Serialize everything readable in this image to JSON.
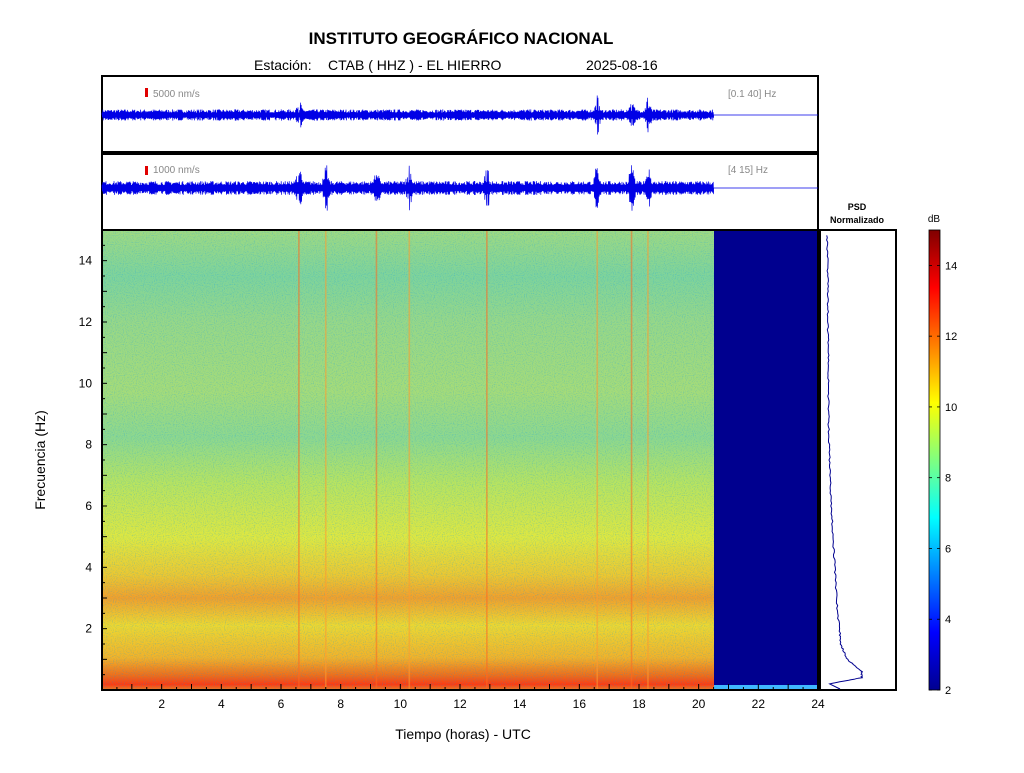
{
  "header": {
    "title": "INSTITUTO GEOGRÁFICO NACIONAL",
    "station_label": "Estación:",
    "station": "CTAB ( HHZ ) - EL HIERRO",
    "date": "2025-08-16"
  },
  "chart_data": {
    "type": "heatmap",
    "xlabel": "Tiempo (horas) - UTC",
    "ylabel": "Frecuencia  (Hz)",
    "xlim": [
      0,
      24
    ],
    "ylim": [
      0,
      15
    ],
    "x_ticks": [
      "2",
      "4",
      "6",
      "8",
      "10",
      "12",
      "14",
      "16",
      "18",
      "20",
      "22",
      "24"
    ],
    "y_ticks": [
      "2",
      "4",
      "6",
      "8",
      "10",
      "12",
      "14"
    ],
    "data_end_hour": 20.5,
    "traces": [
      {
        "scale": "5000 nm/s",
        "filter": "[0.1 40] Hz",
        "events_h": [
          6.6,
          16.6,
          17.75,
          18.3
        ]
      },
      {
        "scale": "1000 nm/s",
        "filter": "[4 15] Hz",
        "events_h": [
          6.6,
          7.5,
          9.2,
          10.3,
          12.9,
          16.6,
          17.75,
          18.3
        ]
      }
    ],
    "psd": {
      "title_line1": "PSD",
      "title_line2": "Normalizado",
      "frequency_hz": [
        0.2,
        0.4,
        0.6,
        1.0,
        1.5,
        2.0,
        3.0,
        4.0,
        5.0,
        6.0,
        7.0,
        8.0,
        9.0,
        10.0,
        11.0,
        12.0,
        13.0,
        14.0,
        14.9
      ],
      "relative_level": [
        0.1,
        0.55,
        0.55,
        0.35,
        0.26,
        0.24,
        0.2,
        0.18,
        0.15,
        0.13,
        0.11,
        0.1,
        0.09,
        0.09,
        0.09,
        0.08,
        0.08,
        0.08,
        0.07
      ]
    },
    "colorbar": {
      "label": "dB",
      "range": [
        2,
        15
      ],
      "ticks": [
        "2",
        "4",
        "6",
        "8",
        "10",
        "12",
        "14"
      ]
    }
  }
}
